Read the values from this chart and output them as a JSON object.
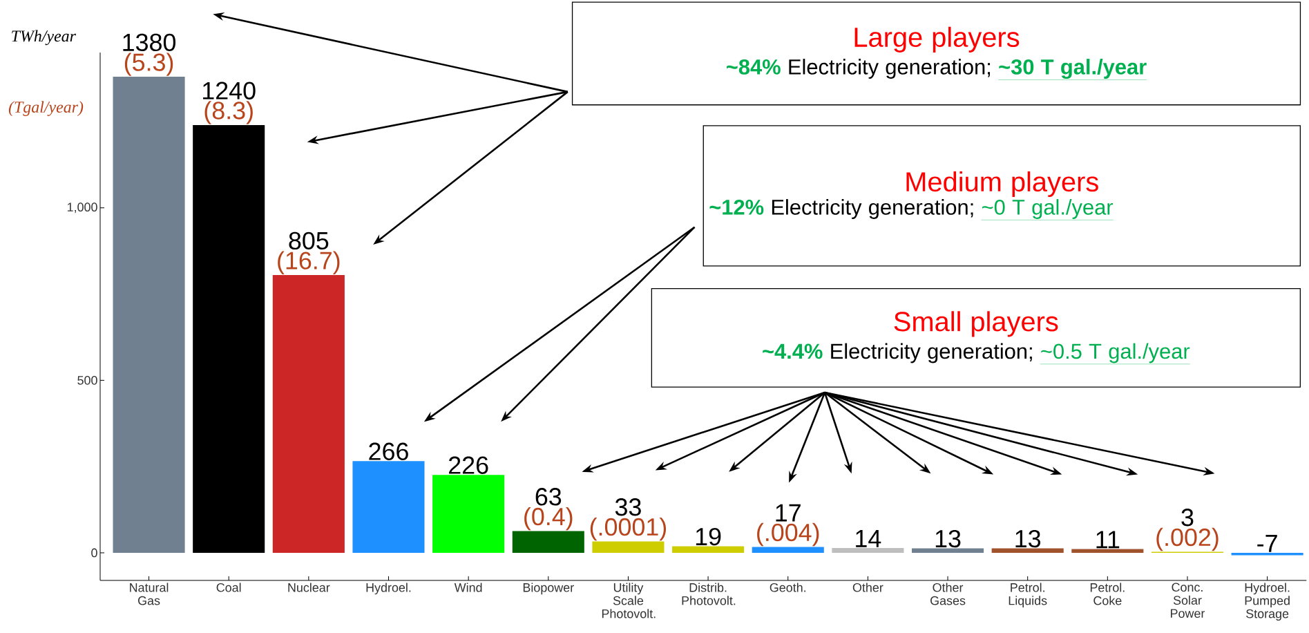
{
  "chart_data": {
    "type": "bar",
    "ylabel": "TWh/year",
    "categories": [
      "Natural Gas",
      "Coal",
      "Nuclear",
      "Hydroel.",
      "Wind",
      "Biopower",
      "Utility Scale Photovolt.",
      "Distrib. Photovolt.",
      "Geoth.",
      "Other",
      "Other Gases",
      "Petrol. Liquids",
      "Petrol. Coke",
      "Conc. Solar Power",
      "Hydroel. Pumped Storage"
    ],
    "values": [
      1380,
      1240,
      805,
      266,
      226,
      63,
      33,
      19,
      17,
      14,
      13,
      13,
      11,
      3,
      -7
    ],
    "colors": [
      "#708090",
      "#000000",
      "#cd2626",
      "#1e90ff",
      "#00ff00",
      "#006400",
      "#cdcd00",
      "#cdcd00",
      "#1e90ff",
      "#bebebe",
      "#708090",
      "#a0522d",
      "#a0522d",
      "#cdcd00",
      "#1e90ff"
    ],
    "data_labels": true,
    "ylim": [
      -80,
      1450
    ],
    "yticks": [
      0,
      500,
      {
        "value": 1000,
        "label": "1,000"
      }
    ],
    "annotations": [
      {
        "text": "(5.3)",
        "x": "Natural Gas",
        "y": 1380
      },
      {
        "text": "(8.3)",
        "x": "Coal",
        "y": 1240
      },
      {
        "text": "(16.7)",
        "x": "Nuclear",
        "y": 805
      },
      {
        "text": "(0.4)",
        "x": "Biopower",
        "y": 63
      },
      {
        "text": "(.0001)",
        "x": "Utility Scale Photovolt.",
        "y": 33
      },
      {
        "text": "(.004)",
        "x": "Geoth.",
        "y": 17
      },
      {
        "text": "(.002)",
        "x": "Conc. Solar Power",
        "y": 3
      },
      "(Tgal/year)",
      "Large players",
      "~84%",
      "Electricity generation;",
      "~30 T gal./year",
      "Medium players",
      "~12%",
      "Electricity generation;",
      "~0 T gal./year",
      "Small players",
      "~4.4%",
      "Electricity generation;",
      "~0.5 T gal./year"
    ]
  }
}
